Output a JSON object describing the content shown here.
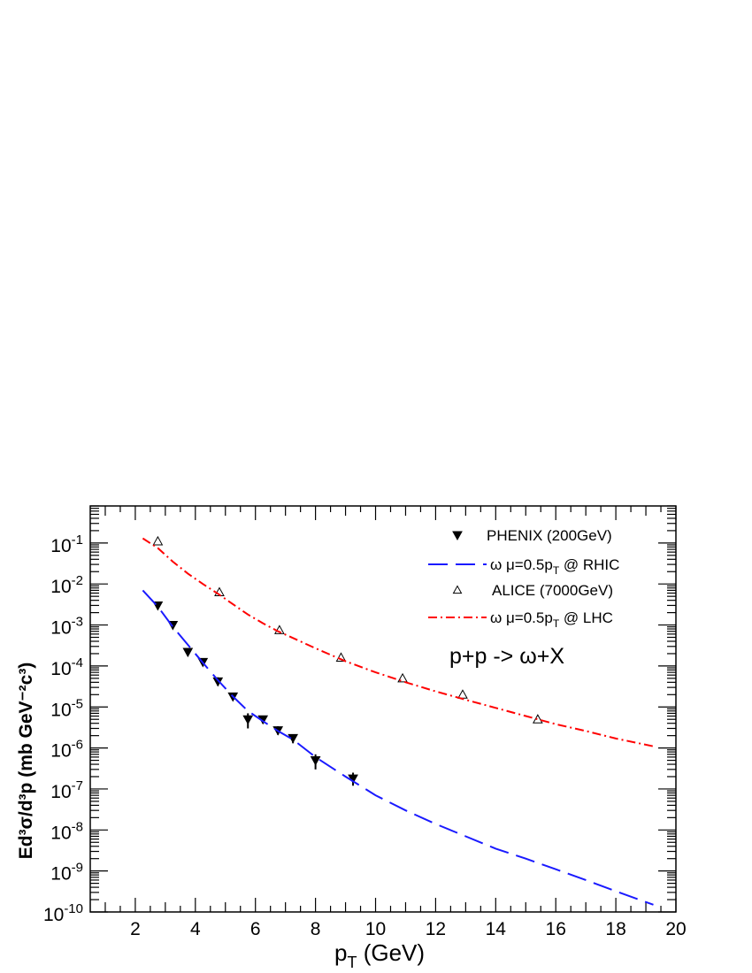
{
  "chart_data": {
    "type": "scatter",
    "xlabel": "p_T (GeV)",
    "ylabel": "Ed³σ/d³p (mb GeV⁻²c³)",
    "xlim": [
      0.5,
      20
    ],
    "ylim": [
      1e-10,
      0.8
    ],
    "x_scale": "linear",
    "y_scale": "log",
    "x_ticks": [
      2,
      4,
      6,
      8,
      10,
      12,
      14,
      16,
      18,
      20
    ],
    "y_ticks": [
      {
        "base": "10",
        "exp": "-1",
        "value": 0.1
      },
      {
        "base": "10",
        "exp": "-2",
        "value": 0.01
      },
      {
        "base": "10",
        "exp": "-3",
        "value": 0.001
      },
      {
        "base": "10",
        "exp": "-4",
        "value": 0.0001
      },
      {
        "base": "10",
        "exp": "-5",
        "value": 1e-05
      },
      {
        "base": "10",
        "exp": "-6",
        "value": 1e-06
      },
      {
        "base": "10",
        "exp": "-7",
        "value": 1e-07
      },
      {
        "base": "10",
        "exp": "-8",
        "value": 1e-08
      },
      {
        "base": "10",
        "exp": "-9",
        "value": 1e-09
      },
      {
        "base": "10",
        "exp": "-10",
        "value": 1e-10
      }
    ],
    "annotation": "p+p -> ω+X",
    "legend_position": "top-right",
    "series": [
      {
        "name": "PHENIX (200GeV)",
        "kind": "points",
        "marker": "filled-down-triangle",
        "color": "#000000",
        "points": [
          {
            "x": 2.75,
            "y": 0.003,
            "lo": 0.0025,
            "hi": 0.0036
          },
          {
            "x": 3.25,
            "y": 0.001,
            "lo": 0.00085,
            "hi": 0.00115
          },
          {
            "x": 3.75,
            "y": 0.00022,
            "lo": 0.00018,
            "hi": 0.00027
          },
          {
            "x": 4.25,
            "y": 0.000125,
            "lo": 0.000105,
            "hi": 0.000145
          },
          {
            "x": 4.75,
            "y": 4.2e-05,
            "lo": 3.3e-05,
            "hi": 5.3e-05
          },
          {
            "x": 5.25,
            "y": 1.8e-05,
            "lo": 1.5e-05,
            "hi": 2.1e-05
          },
          {
            "x": 5.75,
            "y": 5e-06,
            "lo": 3e-06,
            "hi": 7e-06
          },
          {
            "x": 6.25,
            "y": 5e-06,
            "lo": 4e-06,
            "hi": 6e-06
          },
          {
            "x": 6.75,
            "y": 2.7e-06,
            "lo": 2.1e-06,
            "hi": 3.4e-06
          },
          {
            "x": 7.25,
            "y": 1.75e-06,
            "lo": 1.3e-06,
            "hi": 2.1e-06
          },
          {
            "x": 8.0,
            "y": 5e-07,
            "lo": 3e-07,
            "hi": 7e-07
          },
          {
            "x": 9.25,
            "y": 1.8e-07,
            "lo": 1.2e-07,
            "hi": 2.5e-07
          }
        ]
      },
      {
        "name": "ω μ=0.5p_T @ RHIC",
        "kind": "line",
        "style": "long-dash",
        "color": "#1a1aff",
        "x": [
          2.25,
          2.75,
          3.25,
          3.75,
          4.25,
          4.75,
          5.25,
          5.75,
          6.25,
          6.75,
          7.25,
          8,
          9,
          10,
          11,
          12,
          13,
          14,
          15,
          16,
          17,
          18,
          19.25
        ],
        "y": [
          0.007,
          0.0028,
          0.0009,
          0.00033,
          0.00012,
          4.5e-05,
          1.8e-05,
          8e-06,
          4.5e-06,
          2.6e-06,
          1.6e-06,
          6e-07,
          2e-07,
          7e-08,
          3e-08,
          1.4e-08,
          7e-09,
          3.5e-09,
          2e-09,
          1.1e-09,
          6e-10,
          3.2e-10,
          1.5e-10
        ]
      },
      {
        "name": "ALICE (7000GeV)",
        "kind": "points",
        "marker": "open-up-triangle",
        "color": "#000000",
        "points": [
          {
            "x": 2.75,
            "y": 0.11
          },
          {
            "x": 4.8,
            "y": 0.0063
          },
          {
            "x": 6.8,
            "y": 0.00075
          },
          {
            "x": 8.85,
            "y": 0.00016
          },
          {
            "x": 10.9,
            "y": 5e-05
          },
          {
            "x": 12.9,
            "y": 2e-05
          },
          {
            "x": 15.4,
            "y": 5e-06
          }
        ]
      },
      {
        "name": "ω μ=0.5p_T @ LHC",
        "kind": "line",
        "style": "dash-dot",
        "color": "#ff0000",
        "x": [
          2.25,
          2.75,
          3.25,
          3.75,
          4.25,
          4.75,
          5.25,
          5.75,
          6.25,
          6.75,
          7.25,
          8,
          9,
          10,
          11,
          12,
          13,
          14,
          15,
          16,
          17,
          18,
          19.25
        ],
        "y": [
          0.13,
          0.075,
          0.035,
          0.018,
          0.01,
          0.0058,
          0.0032,
          0.0018,
          0.0011,
          0.0007,
          0.00048,
          0.00027,
          0.00013,
          7e-05,
          4e-05,
          2.4e-05,
          1.5e-05,
          9.5e-06,
          6e-06,
          3.8e-06,
          2.6e-06,
          1.7e-06,
          1.1e-06
        ]
      }
    ]
  }
}
